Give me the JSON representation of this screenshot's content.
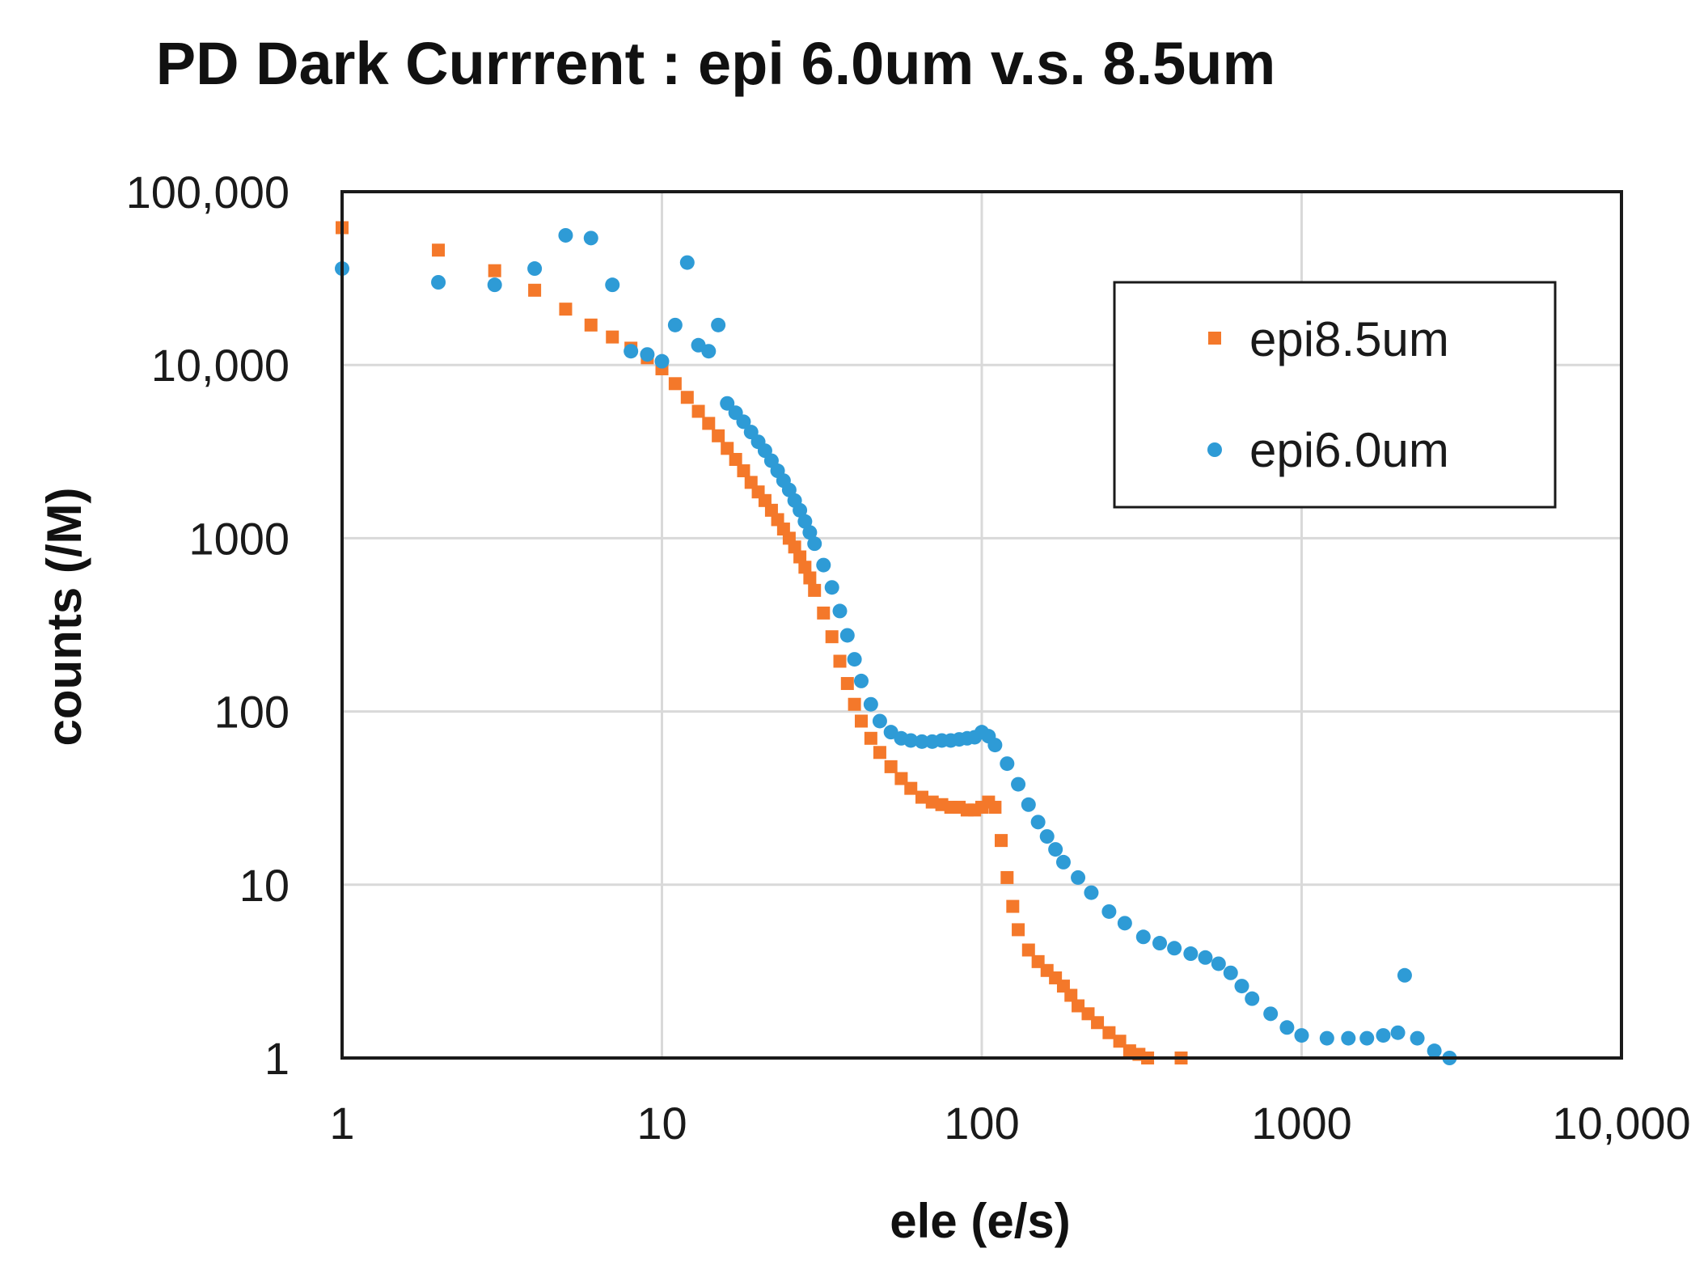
{
  "chart_data": {
    "type": "scatter",
    "title": "PD Dark Currrent : epi 6.0um v.s. 8.5um",
    "xlabel": "ele (e/s)",
    "ylabel": "counts (/M)",
    "x_scale": "log",
    "y_scale": "log",
    "xlim": [
      1,
      10000
    ],
    "ylim": [
      1,
      100000
    ],
    "x_ticks": [
      1,
      10,
      100,
      1000,
      10000
    ],
    "x_tick_labels": [
      "1",
      "10",
      "100",
      "1000",
      "10,000"
    ],
    "y_ticks": [
      1,
      10,
      100,
      1000,
      10000,
      100000
    ],
    "y_tick_labels": [
      "1",
      "10",
      "100",
      "1000",
      "10,000",
      "100,000"
    ],
    "grid": true,
    "legend_position": "top-right",
    "series": [
      {
        "name": "epi8.5um",
        "color": "#F4782A",
        "marker": "square",
        "points": [
          [
            1,
            62000
          ],
          [
            2,
            46000
          ],
          [
            3,
            35000
          ],
          [
            4,
            27000
          ],
          [
            5,
            21000
          ],
          [
            6,
            17000
          ],
          [
            7,
            14500
          ],
          [
            8,
            12500
          ],
          [
            9,
            11000
          ],
          [
            10,
            9500
          ],
          [
            11,
            7800
          ],
          [
            12,
            6500
          ],
          [
            13,
            5400
          ],
          [
            14,
            4600
          ],
          [
            15,
            3900
          ],
          [
            16,
            3300
          ],
          [
            17,
            2850
          ],
          [
            18,
            2450
          ],
          [
            19,
            2100
          ],
          [
            20,
            1850
          ],
          [
            21,
            1650
          ],
          [
            22,
            1450
          ],
          [
            23,
            1280
          ],
          [
            24,
            1130
          ],
          [
            25,
            1000
          ],
          [
            26,
            890
          ],
          [
            27,
            780
          ],
          [
            28,
            680
          ],
          [
            29,
            590
          ],
          [
            30,
            500
          ],
          [
            32,
            370
          ],
          [
            34,
            270
          ],
          [
            36,
            195
          ],
          [
            38,
            145
          ],
          [
            40,
            110
          ],
          [
            42,
            88
          ],
          [
            45,
            70
          ],
          [
            48,
            58
          ],
          [
            52,
            48
          ],
          [
            56,
            41
          ],
          [
            60,
            36
          ],
          [
            65,
            32
          ],
          [
            70,
            30
          ],
          [
            75,
            29
          ],
          [
            80,
            28
          ],
          [
            85,
            28
          ],
          [
            90,
            27
          ],
          [
            95,
            27
          ],
          [
            100,
            28
          ],
          [
            105,
            30
          ],
          [
            110,
            28
          ],
          [
            115,
            18
          ],
          [
            120,
            11
          ],
          [
            125,
            7.5
          ],
          [
            130,
            5.5
          ],
          [
            140,
            4.2
          ],
          [
            150,
            3.6
          ],
          [
            160,
            3.2
          ],
          [
            170,
            2.9
          ],
          [
            180,
            2.6
          ],
          [
            190,
            2.3
          ],
          [
            200,
            2.0
          ],
          [
            215,
            1.8
          ],
          [
            230,
            1.6
          ],
          [
            250,
            1.4
          ],
          [
            270,
            1.25
          ],
          [
            290,
            1.1
          ],
          [
            310,
            1.05
          ],
          [
            330,
            1.0
          ],
          [
            420,
            1.0
          ]
        ]
      },
      {
        "name": "epi6.0um",
        "color": "#2E9BD6",
        "marker": "circle",
        "points": [
          [
            1,
            36000
          ],
          [
            2,
            30000
          ],
          [
            3,
            29000
          ],
          [
            4,
            36000
          ],
          [
            5,
            56000
          ],
          [
            6,
            54000
          ],
          [
            7,
            29000
          ],
          [
            8,
            12000
          ],
          [
            9,
            11500
          ],
          [
            10,
            10500
          ],
          [
            11,
            17000
          ],
          [
            12,
            39000
          ],
          [
            13,
            13000
          ],
          [
            14,
            12000
          ],
          [
            15,
            17000
          ],
          [
            16,
            6000
          ],
          [
            17,
            5300
          ],
          [
            18,
            4700
          ],
          [
            19,
            4100
          ],
          [
            20,
            3600
          ],
          [
            21,
            3200
          ],
          [
            22,
            2800
          ],
          [
            23,
            2450
          ],
          [
            24,
            2150
          ],
          [
            25,
            1900
          ],
          [
            26,
            1650
          ],
          [
            27,
            1450
          ],
          [
            28,
            1250
          ],
          [
            29,
            1080
          ],
          [
            30,
            930
          ],
          [
            32,
            700
          ],
          [
            34,
            520
          ],
          [
            36,
            380
          ],
          [
            38,
            275
          ],
          [
            40,
            200
          ],
          [
            42,
            150
          ],
          [
            45,
            110
          ],
          [
            48,
            88
          ],
          [
            52,
            76
          ],
          [
            56,
            70
          ],
          [
            60,
            68
          ],
          [
            65,
            67
          ],
          [
            70,
            67
          ],
          [
            75,
            68
          ],
          [
            80,
            68
          ],
          [
            85,
            69
          ],
          [
            90,
            70
          ],
          [
            95,
            71
          ],
          [
            100,
            76
          ],
          [
            105,
            72
          ],
          [
            110,
            64
          ],
          [
            120,
            50
          ],
          [
            130,
            38
          ],
          [
            140,
            29
          ],
          [
            150,
            23
          ],
          [
            160,
            19
          ],
          [
            170,
            16
          ],
          [
            180,
            13.5
          ],
          [
            200,
            11
          ],
          [
            220,
            9
          ],
          [
            250,
            7
          ],
          [
            280,
            6
          ],
          [
            320,
            5
          ],
          [
            360,
            4.6
          ],
          [
            400,
            4.3
          ],
          [
            450,
            4.0
          ],
          [
            500,
            3.8
          ],
          [
            550,
            3.5
          ],
          [
            600,
            3.1
          ],
          [
            650,
            2.6
          ],
          [
            700,
            2.2
          ],
          [
            800,
            1.8
          ],
          [
            900,
            1.5
          ],
          [
            1000,
            1.35
          ],
          [
            1200,
            1.3
          ],
          [
            1400,
            1.3
          ],
          [
            1600,
            1.3
          ],
          [
            1800,
            1.35
          ],
          [
            2000,
            1.4
          ],
          [
            2100,
            3.0
          ],
          [
            2300,
            1.3
          ],
          [
            2600,
            1.1
          ],
          [
            2900,
            1.0
          ]
        ]
      }
    ]
  }
}
